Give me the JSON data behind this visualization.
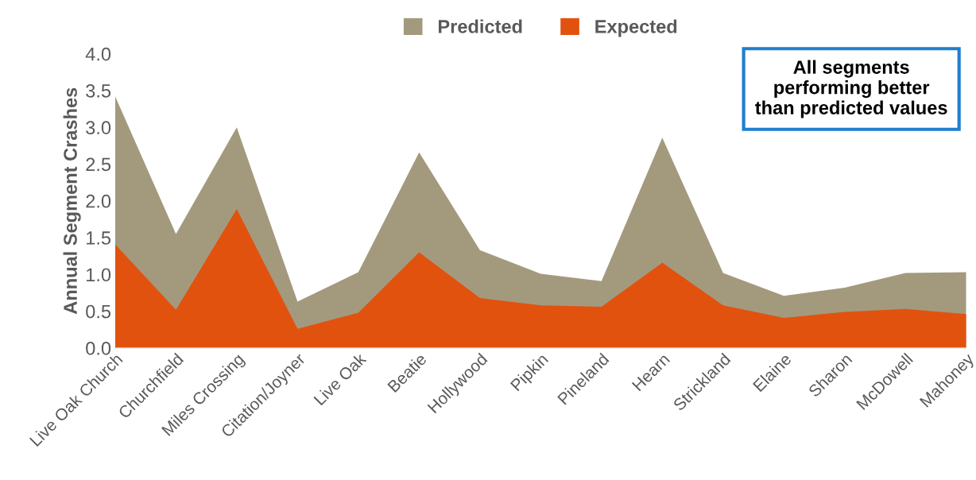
{
  "chart_data": {
    "type": "area",
    "ylabel": "Annual Segment Crashes",
    "categories": [
      "Live Oak Church",
      "Churchfield",
      "Miles Crossing",
      "Citation/Joyner",
      "Live Oak",
      "Beatie",
      "Hollywood",
      "Pipkin",
      "Pineland",
      "Hearn",
      "Strickland",
      "Elaine",
      "Sharon",
      "McDowell",
      "Mahoney"
    ],
    "series": [
      {
        "name": "Predicted",
        "color": "#a39a7e",
        "values": [
          3.42,
          1.55,
          3.0,
          0.63,
          1.03,
          2.66,
          1.33,
          1.01,
          0.91,
          2.86,
          1.02,
          0.71,
          0.82,
          1.02,
          1.03
        ]
      },
      {
        "name": "Expected",
        "color": "#e2520f",
        "values": [
          1.41,
          0.52,
          1.89,
          0.26,
          0.48,
          1.3,
          0.68,
          0.58,
          0.56,
          1.16,
          0.58,
          0.41,
          0.49,
          0.53,
          0.46
        ]
      }
    ],
    "ylim": [
      0,
      4.0
    ],
    "yticks": [
      {
        "value": 0,
        "label": "0.0"
      },
      {
        "value": 0.5,
        "label": "0.5"
      },
      {
        "value": 1,
        "label": "1.0"
      },
      {
        "value": 1.5,
        "label": "1.5"
      },
      {
        "value": 2,
        "label": "2.0"
      },
      {
        "value": 2.5,
        "label": "2.5"
      },
      {
        "value": 3,
        "label": "3.0"
      },
      {
        "value": 3.5,
        "label": "3.5"
      },
      {
        "value": 4,
        "label": "4.0"
      }
    ],
    "grid": false,
    "legend": "top",
    "annotations": [
      "All segments\nperforming better\nthan predicted values"
    ]
  }
}
